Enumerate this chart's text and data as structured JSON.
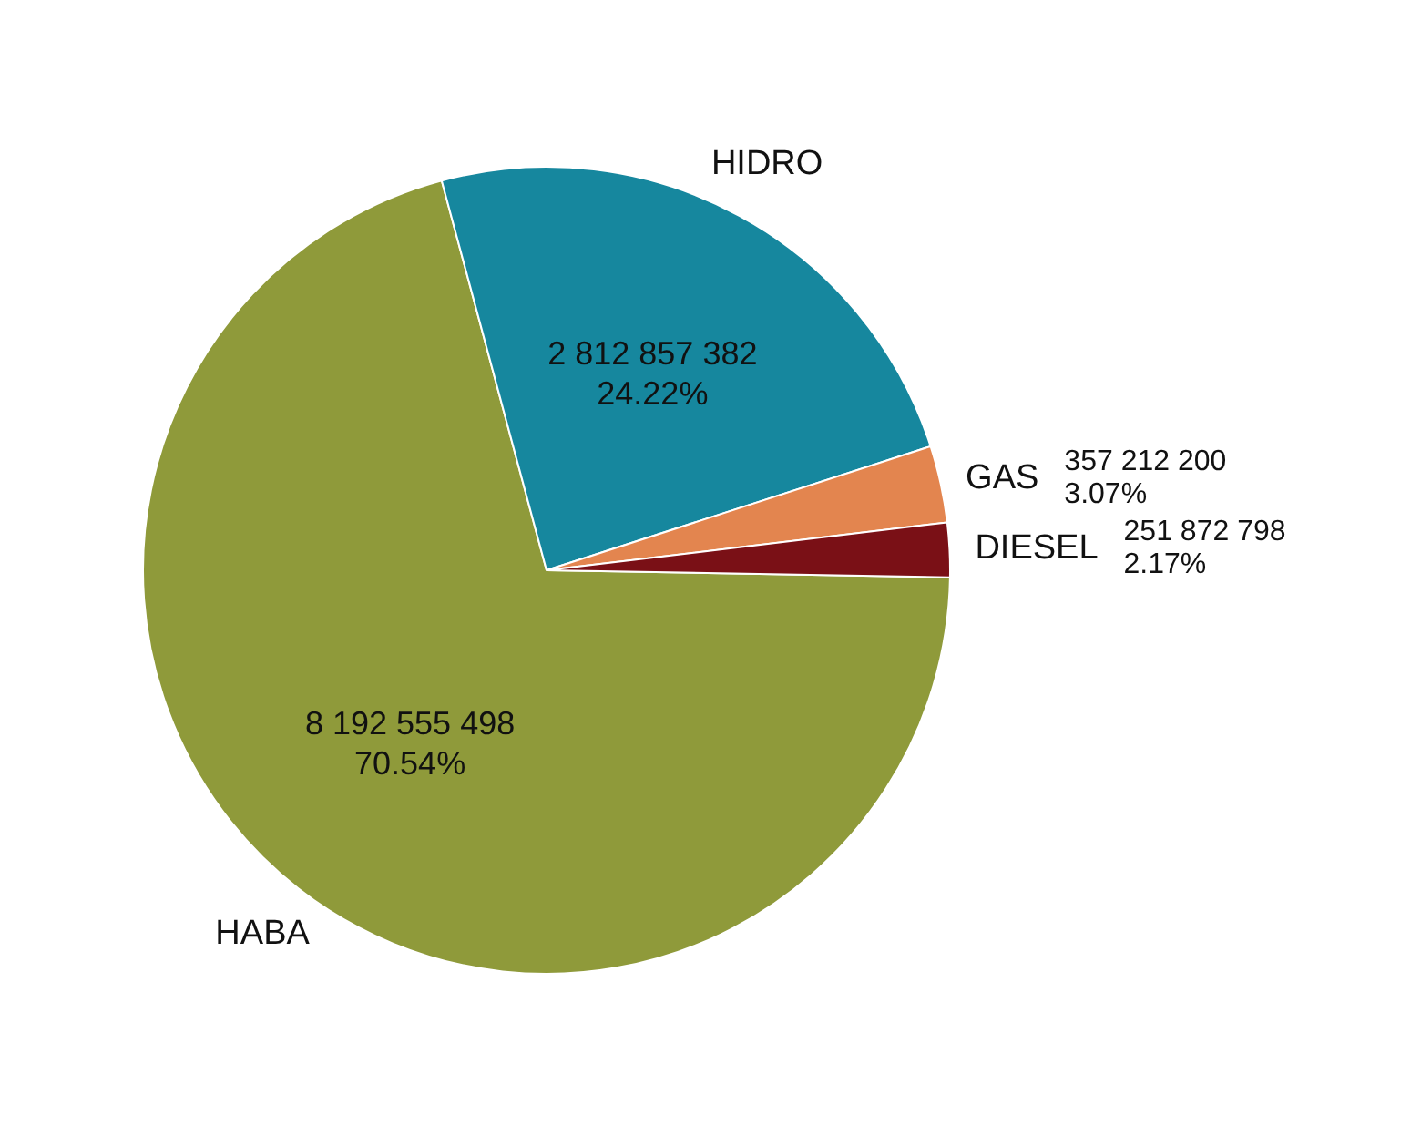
{
  "chart_data": {
    "type": "pie",
    "categories": [
      "HABA",
      "HIDRO",
      "GAS",
      "DIESEL"
    ],
    "values": [
      8192555498,
      2812857382,
      357212200,
      251872798
    ],
    "colors": [
      "#8f9a3a",
      "#16879e",
      "#e3854f",
      "#7a1016"
    ],
    "value_labels": [
      "8 192 555 498\n70.54%",
      "2 812 857 382\n24.22%",
      "357 212 200\n3.07%",
      "251 872 798\n2.17%"
    ],
    "legend": false
  }
}
